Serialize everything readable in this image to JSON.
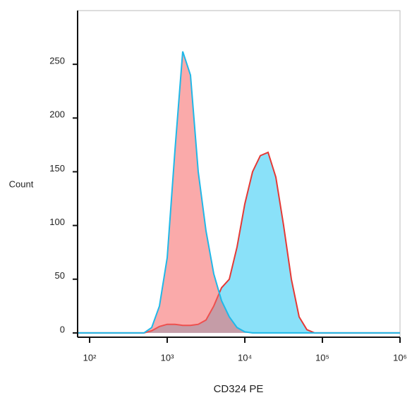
{
  "chart_data": {
    "type": "histogram-overlay",
    "x_label": "CD324 PE",
    "y_label": "Count",
    "x": [
      70,
      501,
      631,
      794,
      1000,
      1259,
      1585,
      1995,
      2512,
      3162,
      3981,
      5012,
      6310,
      7943,
      10000,
      12589,
      15849,
      19953,
      25119,
      31623,
      39811,
      50119,
      63096,
      79433,
      100000,
      1000000
    ],
    "series": [
      {
        "color": "#1fb8e8",
        "values": [
          0,
          0,
          5,
          25,
          70,
          170,
          262,
          240,
          150,
          95,
          55,
          30,
          15,
          5,
          1,
          0,
          0,
          0,
          0,
          0,
          0,
          0,
          0,
          0,
          0,
          0
        ]
      },
      {
        "color": "#e53935",
        "values": [
          0,
          0,
          2,
          6,
          8,
          8,
          7,
          7,
          8,
          12,
          25,
          42,
          50,
          80,
          120,
          150,
          165,
          168,
          145,
          100,
          50,
          15,
          3,
          0,
          0,
          0
        ]
      }
    ],
    "xscale": "log",
    "xlim": [
      70,
      1000000
    ],
    "xticks": [
      {
        "value": 100,
        "label": "10²"
      },
      {
        "value": 1000,
        "label": "10³"
      },
      {
        "value": 10000,
        "label": "10⁴"
      },
      {
        "value": 100000,
        "label": "10⁵"
      },
      {
        "value": 1000000,
        "label": "10⁶"
      }
    ],
    "ylim": [
      -4,
      300
    ],
    "yticks": [
      0,
      50,
      100,
      150,
      200,
      250
    ]
  }
}
